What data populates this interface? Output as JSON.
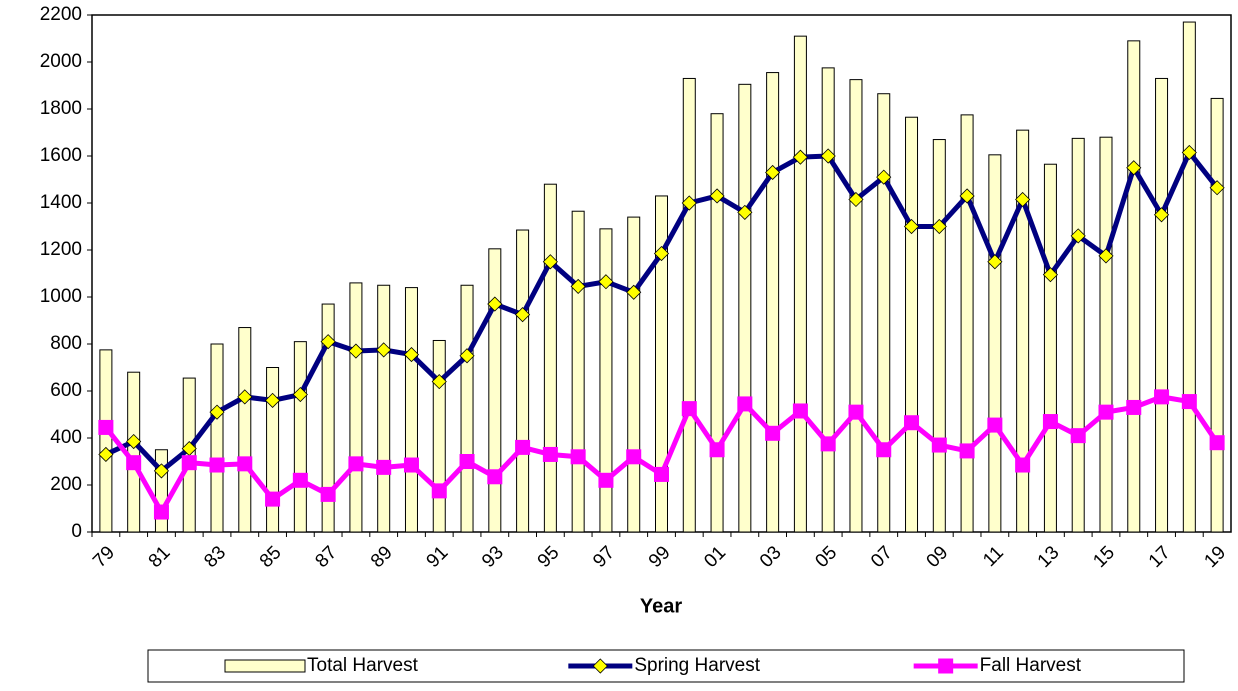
{
  "chart_data": {
    "type": "bar",
    "x_label": "Year",
    "categories": [
      "79",
      null,
      "81",
      null,
      "83",
      null,
      "85",
      null,
      "87",
      null,
      "89",
      null,
      "91",
      null,
      "93",
      null,
      "95",
      null,
      "97",
      null,
      "99",
      null,
      "01",
      null,
      "03",
      null,
      "05",
      null,
      "07",
      null,
      "09",
      null,
      "11",
      null,
      "13",
      null,
      "15",
      null,
      "17",
      null,
      "19"
    ],
    "series": [
      {
        "name": "Total Harvest",
        "type": "bar",
        "color": "#ffffcc",
        "values": [
          775,
          680,
          350,
          655,
          800,
          870,
          700,
          810,
          970,
          1060,
          1050,
          1040,
          815,
          1050,
          1205,
          1285,
          1480,
          1365,
          1290,
          1340,
          1430,
          1930,
          1780,
          1905,
          1955,
          2110,
          1975,
          1925,
          1865,
          1765,
          1670,
          1775,
          1605,
          1710,
          1565,
          1675,
          1680,
          2090,
          1930,
          2170,
          1845
        ]
      },
      {
        "name": "Spring Harvest",
        "type": "line",
        "color": "#000080",
        "marker": "diamond",
        "marker_color": "#ffff00",
        "values": [
          330,
          385,
          260,
          355,
          510,
          575,
          560,
          585,
          810,
          770,
          775,
          755,
          640,
          750,
          970,
          925,
          1150,
          1045,
          1065,
          1020,
          1185,
          1400,
          1430,
          1360,
          1530,
          1595,
          1600,
          1415,
          1510,
          1300,
          1300,
          1430,
          1150,
          1415,
          1095,
          1260,
          1175,
          1550,
          1350,
          1615,
          1465
        ]
      },
      {
        "name": "Fall Harvest",
        "type": "line",
        "color": "#ff00ff",
        "marker": "square",
        "marker_color": "#ff00ff",
        "values": [
          445,
          295,
          85,
          295,
          285,
          290,
          140,
          220,
          160,
          290,
          275,
          285,
          175,
          300,
          235,
          360,
          330,
          320,
          220,
          320,
          245,
          525,
          350,
          545,
          420,
          515,
          375,
          510,
          350,
          465,
          370,
          345,
          455,
          285,
          470,
          410,
          510,
          530,
          575,
          555,
          380
        ]
      }
    ],
    "ylim": [
      0,
      2200
    ],
    "yticks": [
      0,
      200,
      400,
      600,
      800,
      1000,
      1200,
      1400,
      1600,
      1800,
      2000,
      2200
    ],
    "grid": false,
    "legend": "bottom"
  }
}
